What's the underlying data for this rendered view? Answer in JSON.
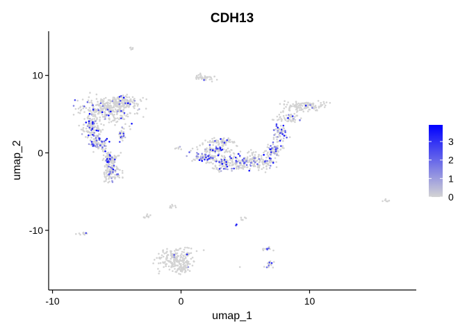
{
  "chart_data": {
    "type": "scatter",
    "title": "CDH13",
    "xlabel": "umap_1",
    "ylabel": "umap_2",
    "xlim": [
      -10.3,
      18.3
    ],
    "ylim": [
      -17.7,
      15.7
    ],
    "x_ticks": [
      -10,
      0,
      10
    ],
    "x_tick_labels": [
      "-10",
      "0",
      "10"
    ],
    "y_ticks": [
      -10,
      0,
      10
    ],
    "y_tick_labels": [
      "-10",
      "0",
      "10"
    ],
    "grid": false,
    "legend_position": "right",
    "legend": {
      "range": [
        0,
        3.9
      ],
      "ticks": [
        3,
        2,
        1,
        0
      ],
      "tick_labels": [
        "3",
        "2",
        "1",
        "0"
      ],
      "low_color": "#d3d3d3",
      "high_color": "#0000ff"
    },
    "clusters": [
      {
        "cx": -5.8,
        "cy": 5.6,
        "rx": 2.1,
        "ry": 1.4,
        "n": 330,
        "expr_frac": 0.1
      },
      {
        "cx": -4.5,
        "cy": 6.6,
        "rx": 1.1,
        "ry": 0.6,
        "n": 110,
        "expr_frac": 0.06
      },
      {
        "cx": -6.9,
        "cy": 3.3,
        "rx": 0.7,
        "ry": 1.1,
        "n": 110,
        "expr_frac": 0.25
      },
      {
        "cx": -6.4,
        "cy": 1.2,
        "rx": 0.6,
        "ry": 0.9,
        "n": 90,
        "expr_frac": 0.3
      },
      {
        "cx": -5.5,
        "cy": -0.8,
        "rx": 0.5,
        "ry": 0.8,
        "n": 90,
        "expr_frac": 0.2
      },
      {
        "cx": -5.4,
        "cy": -2.6,
        "rx": 0.6,
        "ry": 1.0,
        "n": 100,
        "expr_frac": 0.15
      },
      {
        "cx": -4.6,
        "cy": 2.4,
        "rx": 0.25,
        "ry": 1.0,
        "n": 25,
        "expr_frac": 0.4
      },
      {
        "cx": 1.8,
        "cy": 9.8,
        "rx": 0.8,
        "ry": 0.4,
        "n": 40,
        "expr_frac": 0.05
      },
      {
        "cx": -3.8,
        "cy": 13.5,
        "rx": 0.15,
        "ry": 0.2,
        "n": 6,
        "expr_frac": 0.0
      },
      {
        "cx": 9.5,
        "cy": 6.0,
        "rx": 1.7,
        "ry": 0.6,
        "n": 130,
        "expr_frac": 0.05
      },
      {
        "cx": 8.3,
        "cy": 4.5,
        "rx": 1.0,
        "ry": 0.6,
        "n": 50,
        "expr_frac": 0.1
      },
      {
        "cx": 7.7,
        "cy": 2.5,
        "rx": 0.5,
        "ry": 1.0,
        "n": 60,
        "expr_frac": 0.35
      },
      {
        "cx": 7.3,
        "cy": 0.4,
        "rx": 0.6,
        "ry": 0.8,
        "n": 60,
        "expr_frac": 0.25
      },
      {
        "cx": 6.0,
        "cy": -1.0,
        "rx": 1.4,
        "ry": 1.0,
        "n": 150,
        "expr_frac": 0.2
      },
      {
        "cx": 3.8,
        "cy": -1.3,
        "rx": 1.6,
        "ry": 0.8,
        "n": 150,
        "expr_frac": 0.3
      },
      {
        "cx": 2.6,
        "cy": 0.3,
        "rx": 1.4,
        "ry": 0.9,
        "n": 110,
        "expr_frac": 0.2
      },
      {
        "cx": 3.1,
        "cy": 1.5,
        "rx": 1.1,
        "ry": 0.4,
        "n": 50,
        "expr_frac": 0.1
      },
      {
        "cx": 1.8,
        "cy": -0.6,
        "rx": 0.9,
        "ry": 0.4,
        "n": 40,
        "expr_frac": 0.5
      },
      {
        "cx": -0.2,
        "cy": 0.6,
        "rx": 0.3,
        "ry": 0.2,
        "n": 6,
        "expr_frac": 0.2
      },
      {
        "cx": -0.4,
        "cy": -13.8,
        "rx": 1.3,
        "ry": 1.3,
        "n": 200,
        "expr_frac": 0.03
      },
      {
        "cx": 0.1,
        "cy": -15.0,
        "rx": 0.6,
        "ry": 0.5,
        "n": 40,
        "expr_frac": 0.05
      },
      {
        "cx": 6.7,
        "cy": -12.5,
        "rx": 0.3,
        "ry": 0.3,
        "n": 12,
        "expr_frac": 0.2
      },
      {
        "cx": 6.9,
        "cy": -14.5,
        "rx": 0.3,
        "ry": 0.5,
        "n": 15,
        "expr_frac": 0.4
      },
      {
        "cx": -7.6,
        "cy": -10.4,
        "rx": 0.4,
        "ry": 0.15,
        "n": 10,
        "expr_frac": 0.1
      },
      {
        "cx": -2.6,
        "cy": -8.2,
        "rx": 0.3,
        "ry": 0.25,
        "n": 10,
        "expr_frac": 0.0
      },
      {
        "cx": -0.7,
        "cy": -7.0,
        "rx": 0.25,
        "ry": 0.3,
        "n": 8,
        "expr_frac": 0.0
      },
      {
        "cx": 4.8,
        "cy": -8.5,
        "rx": 0.2,
        "ry": 0.2,
        "n": 6,
        "expr_frac": 0.0
      },
      {
        "cx": 4.3,
        "cy": -9.3,
        "rx": 0.1,
        "ry": 0.1,
        "n": 3,
        "expr_frac": 0.7
      },
      {
        "cx": 15.9,
        "cy": -6.2,
        "rx": 0.3,
        "ry": 0.15,
        "n": 6,
        "expr_frac": 0.2
      },
      {
        "cx": 4.6,
        "cy": -14.8,
        "rx": 0.05,
        "ry": 0.05,
        "n": 1,
        "expr_frac": 0.0
      }
    ]
  }
}
